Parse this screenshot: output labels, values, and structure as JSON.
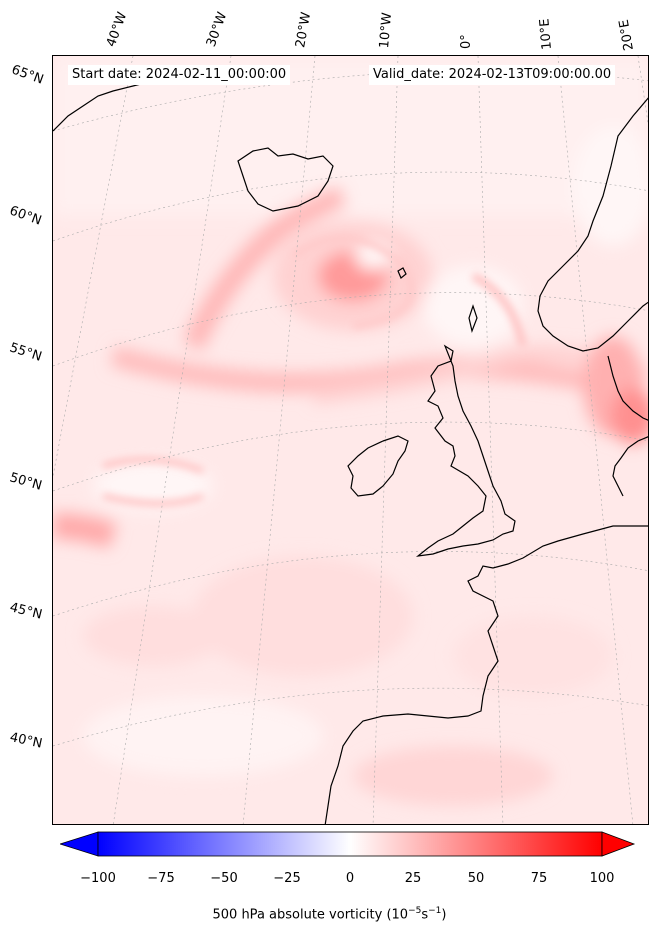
{
  "title": {
    "start": "Start date: 2024-02-11_00:00:00",
    "valid": "Valid_date: 2024-02-13T09:00:00.00"
  },
  "lon_labels": [
    "40°W",
    "30°W",
    "20°W",
    "10°W",
    "0°",
    "10°E",
    "20°E"
  ],
  "lat_labels": [
    "65°N",
    "60°N",
    "55°N",
    "50°N",
    "45°N",
    "40°N"
  ],
  "colorbar": {
    "ticks": [
      "−100",
      "−75",
      "−50",
      "−25",
      "0",
      "25",
      "50",
      "75",
      "100"
    ],
    "label_prefix": "500 hPa absolute vorticity (10",
    "label_exp1": "−5",
    "label_mid": "s",
    "label_exp2": "−1",
    "label_suffix": ")",
    "min": -100,
    "max": 100,
    "low_color": "#0000ff",
    "mid_color": "#ffffff",
    "high_color": "#ff0000"
  },
  "colors": {
    "background_field": "#ffecec",
    "coastline": "#000000",
    "gridline": "#aaaaaa"
  }
}
